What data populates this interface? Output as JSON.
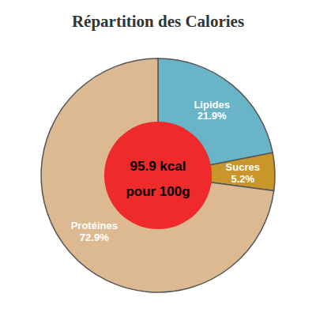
{
  "chart_data": {
    "type": "pie",
    "title": "Répartition des Calories",
    "categories": [
      "Lipides",
      "Sucres",
      "Protéines"
    ],
    "values": [
      21.9,
      5.2,
      72.9
    ],
    "value_labels": [
      "21.9%",
      "5.2%",
      "72.9%"
    ],
    "colors": [
      "#6ab4c8",
      "#c8962a",
      "#ddb992"
    ],
    "annotations": [
      "95.9 kcal",
      "pour 100g"
    ]
  }
}
